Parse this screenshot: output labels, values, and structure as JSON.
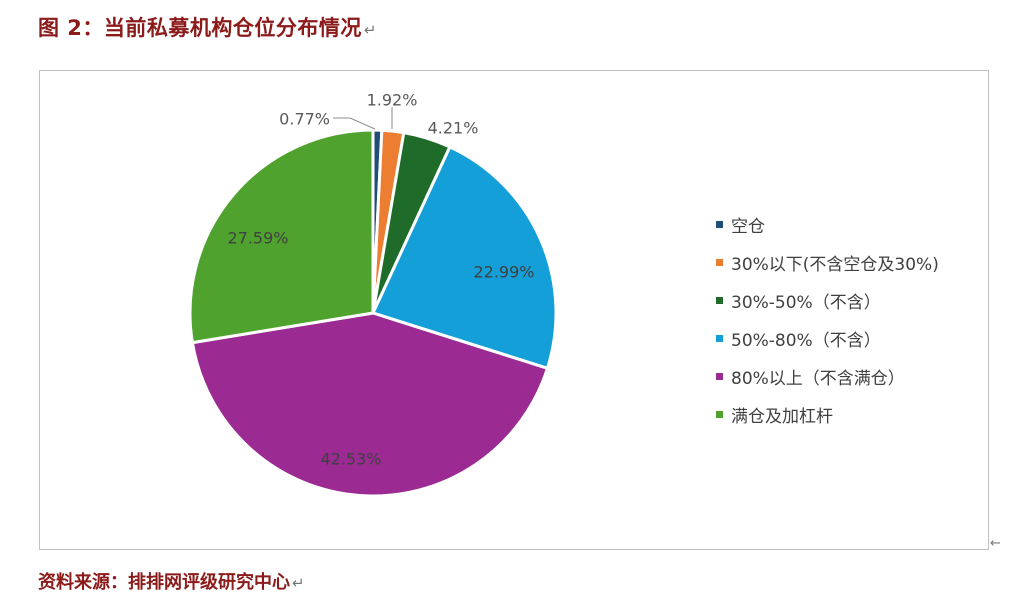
{
  "figure": {
    "title": "图 2：当前私募机构仓位分布情况",
    "paragraph_mark": "↵",
    "source": "资料来源：排排网评级研究中心"
  },
  "chart_data": {
    "type": "pie",
    "title": "",
    "legend_position": "right",
    "slices": [
      {
        "label": "空仓",
        "value": 0.77,
        "display": "0.77%",
        "color": "#1f4e79"
      },
      {
        "label": "30%以下(不含空仓及30%)",
        "value": 1.92,
        "display": "1.92%",
        "color": "#ed7d31"
      },
      {
        "label": "30%-50%（不含）",
        "value": 4.21,
        "display": "4.21%",
        "color": "#1e6b2a"
      },
      {
        "label": "50%-80%（不含）",
        "value": 22.99,
        "display": "22.99%",
        "color": "#159fd8"
      },
      {
        "label": "80%以上（不含满仓）",
        "value": 42.53,
        "display": "42.53%",
        "color": "#9b2a92"
      },
      {
        "label": "满仓及加杠杆",
        "value": 27.59,
        "display": "27.59%",
        "color": "#4fa22e"
      }
    ]
  }
}
